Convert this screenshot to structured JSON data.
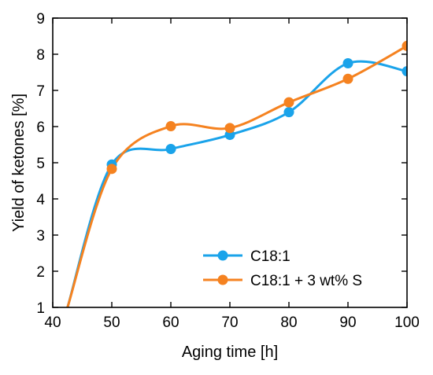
{
  "chart_data": {
    "type": "line",
    "title": "",
    "xlabel": "Aging time [h]",
    "ylabel": "Yield of ketones [%]",
    "xlim": [
      40,
      100
    ],
    "ylim": [
      1,
      9
    ],
    "x_ticks": [
      40,
      50,
      60,
      70,
      80,
      90,
      100
    ],
    "y_ticks": [
      1,
      2,
      3,
      4,
      5,
      6,
      7,
      8,
      9
    ],
    "x_tick_labels": [
      "40",
      "50",
      "60",
      "70",
      "80",
      "90",
      "100"
    ],
    "y_tick_labels": [
      "1",
      "2",
      "3",
      "4",
      "5",
      "6",
      "7",
      "8",
      "9"
    ],
    "grid": false,
    "smoothed": true,
    "legend_position": "bottom-right",
    "series": [
      {
        "name": "C18:1",
        "color": "#1aa3ea",
        "x": [
          42.5,
          50,
          60,
          70,
          80,
          90,
          100
        ],
        "y": [
          1.0,
          4.95,
          5.38,
          5.77,
          6.4,
          7.75,
          7.53
        ],
        "markers_x": [
          50,
          60,
          70,
          80,
          90,
          100
        ],
        "markers_y": [
          4.95,
          5.38,
          5.77,
          6.4,
          7.75,
          7.53
        ]
      },
      {
        "name": "C18:1 + 3 wt% S",
        "color": "#f58220",
        "x": [
          42.5,
          50,
          60,
          70,
          80,
          90,
          100
        ],
        "y": [
          1.0,
          4.83,
          6.01,
          5.96,
          6.67,
          7.32,
          8.23
        ],
        "markers_x": [
          50,
          60,
          70,
          80,
          90,
          100
        ],
        "markers_y": [
          4.83,
          6.01,
          5.96,
          6.67,
          7.32,
          8.23
        ]
      }
    ]
  }
}
